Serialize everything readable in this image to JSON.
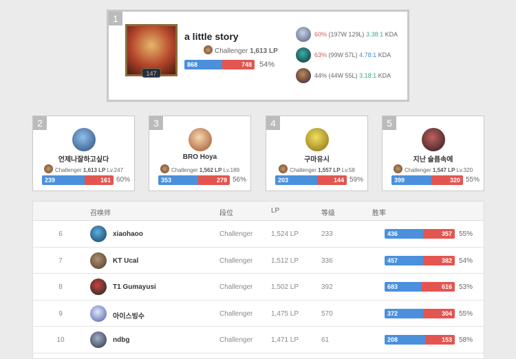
{
  "top": {
    "rank": "1",
    "name": "a little story",
    "tier": "Challenger",
    "lp": "1,613 LP",
    "level": "147",
    "wins": 868,
    "losses": 748,
    "winrate": "54%",
    "champions": [
      {
        "winrate": "60%",
        "record": "(197W 129L)",
        "kda": "3.38:1",
        "kda_label": "KDA",
        "wr_color": "red",
        "kda_color": "green",
        "colors": [
          "#c8d2e6",
          "#4a5a7a"
        ]
      },
      {
        "winrate": "63%",
        "record": "(99W 57L)",
        "kda": "4.78:1",
        "kda_label": "KDA",
        "wr_color": "red",
        "kda_color": "blue",
        "colors": [
          "#3bb0a8",
          "#0d2a30"
        ]
      },
      {
        "winrate": "44%",
        "record": "(44W 55L)",
        "kda": "3.18:1",
        "kda_label": "KDA",
        "wr_color": "",
        "kda_color": "green",
        "colors": [
          "#c08a50",
          "#2a2040"
        ]
      }
    ]
  },
  "cards": [
    {
      "rank": "2",
      "name": "언제나잘하고싶다",
      "tier": "Challenger",
      "lp": "1,613 LP",
      "level": "Lv.247",
      "wins": 239,
      "losses": 161,
      "winrate": "60%",
      "colors": [
        "#8fc0ee",
        "#2a4a78"
      ]
    },
    {
      "rank": "3",
      "name": "BRO Hoya",
      "tier": "Challenger",
      "lp": "1,562 LP",
      "level": "Lv.189",
      "wins": 353,
      "losses": 279,
      "winrate": "56%",
      "colors": [
        "#f4d8b0",
        "#a0502a"
      ]
    },
    {
      "rank": "4",
      "name": "구마유시",
      "tier": "Challenger",
      "lp": "1,557 LP",
      "level": "Lv.58",
      "wins": 203,
      "losses": 144,
      "winrate": "59%",
      "colors": [
        "#f0e060",
        "#8a6a10"
      ]
    },
    {
      "rank": "5",
      "name": "지난 슬픔속에",
      "tier": "Challenger",
      "lp": "1,547 LP",
      "level": "Lv.320",
      "wins": 399,
      "losses": 320,
      "winrate": "55%",
      "colors": [
        "#c06060",
        "#2a1a1a"
      ]
    }
  ],
  "table": {
    "headers": {
      "summoner": "召唤师",
      "tier": "段位",
      "lp": "LP",
      "level": "等级",
      "winrate": "胜率"
    },
    "rows": [
      {
        "rank": "6",
        "name": "xiaohaoo",
        "tier": "Challenger",
        "lp": "1,524 LP",
        "level": "233",
        "wins": 436,
        "losses": 357,
        "winrate": "55%",
        "colors": [
          "#5ab0e0",
          "#1a3a5a"
        ]
      },
      {
        "rank": "7",
        "name": "KT Ucal",
        "tier": "Challenger",
        "lp": "1,512 LP",
        "level": "336",
        "wins": 457,
        "losses": 382,
        "winrate": "54%",
        "colors": [
          "#b09070",
          "#4a3a2a"
        ]
      },
      {
        "rank": "8",
        "name": "T1 Gumayusi",
        "tier": "Challenger",
        "lp": "1,502 LP",
        "level": "392",
        "wins": 683,
        "losses": 616,
        "winrate": "53%",
        "colors": [
          "#d04040",
          "#0a3020"
        ]
      },
      {
        "rank": "9",
        "name": "아이스빙수",
        "tier": "Challenger",
        "lp": "1,475 LP",
        "level": "570",
        "wins": 372,
        "losses": 304,
        "winrate": "55%",
        "colors": [
          "#e0e8ff",
          "#4a5aa0"
        ]
      },
      {
        "rank": "10",
        "name": "ndbg",
        "tier": "Challenger",
        "lp": "1,471 LP",
        "level": "61",
        "wins": 208,
        "losses": 153,
        "winrate": "58%",
        "colors": [
          "#a0b0c8",
          "#2a3040"
        ]
      }
    ]
  }
}
